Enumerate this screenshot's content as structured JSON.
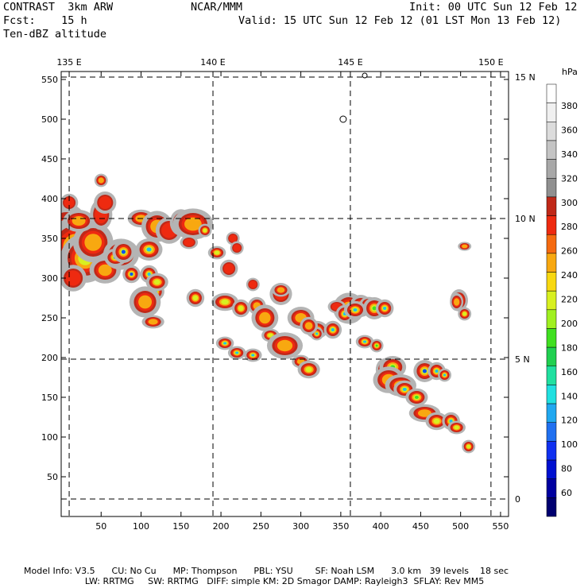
{
  "header": {
    "model": "CONTRAST  3km ARW",
    "center": "NCAR/MMM",
    "init": "Init: 00 UTC Sun 12 Feb 12",
    "fcst": "Fcst:    15 h",
    "valid": "Valid: 15 UTC Sun 12 Feb 12 (01 LST Mon 13 Feb 12)",
    "field": "Ten-dBZ altitude"
  },
  "footer": {
    "line1": "Model Info: V3.5      CU: No Cu      MP: Thompson      PBL: YSU        SF: Noah LSM      3.0 km   39 levels    18 sec",
    "line2": "                      LW: RRTMG     SW: RRTMG   DIFF: simple KM: 2D Smagor DAMP: Rayleigh3  SFLAY: Rev MM5"
  },
  "colors": {
    "grid": "#000000",
    "coast": "#000000"
  },
  "chart_data": {
    "type": "heatmap",
    "title": "Ten-dBZ altitude",
    "x": {
      "ticks": [
        50,
        100,
        150,
        200,
        250,
        300,
        350,
        400,
        450,
        500,
        550
      ],
      "range": [
        0,
        560
      ]
    },
    "y": {
      "ticks": [
        50,
        100,
        150,
        200,
        250,
        300,
        350,
        400,
        450,
        500,
        550
      ],
      "range": [
        0,
        560
      ]
    },
    "lon_labels": [
      {
        "label": "135 E",
        "x": 10
      },
      {
        "label": "140 E",
        "x": 190
      },
      {
        "label": "145 E",
        "x": 362
      },
      {
        "label": "150 E",
        "x": 538
      }
    ],
    "lat_labels": [
      {
        "label": "15 N",
        "y": 553
      },
      {
        "label": "10 N",
        "y": 375
      },
      {
        "label": "5 N",
        "y": 198
      },
      {
        "label": "0",
        "y": 22
      }
    ],
    "colorbar": {
      "unit": "hPa",
      "levels": [
        "380",
        "360",
        "340",
        "320",
        "300",
        "280",
        "260",
        "240",
        "220",
        "200",
        "180",
        "160",
        "140",
        "120",
        "100",
        "80",
        "60"
      ],
      "colors": [
        "#ffffff",
        "#f0f0f0",
        "#dcdcdc",
        "#c4c4c4",
        "#a8a8a8",
        "#909090",
        "#c02818",
        "#ee2a10",
        "#f56a10",
        "#f8a810",
        "#f8d810",
        "#d8f020",
        "#a0f020",
        "#40e020",
        "#20d050",
        "#20e0a0",
        "#20e0e0",
        "#20a8f0",
        "#2070f0",
        "#1030f0",
        "#0010d0",
        "#0000a0",
        "#000070"
      ]
    },
    "blobs": [
      [
        6,
        355,
        22,
        28,
        4
      ],
      [
        18,
        340,
        26,
        26,
        4
      ],
      [
        30,
        325,
        22,
        22,
        4
      ],
      [
        40,
        345,
        18,
        18,
        3
      ],
      [
        55,
        310,
        14,
        12,
        3
      ],
      [
        22,
        372,
        14,
        10,
        3
      ],
      [
        50,
        380,
        10,
        14,
        2
      ],
      [
        55,
        395,
        10,
        10,
        2
      ],
      [
        50,
        423,
        6,
        6,
        3
      ],
      [
        10,
        395,
        8,
        8,
        2
      ],
      [
        15,
        300,
        12,
        12,
        2
      ],
      [
        75,
        330,
        16,
        14,
        2
      ],
      [
        68,
        326,
        10,
        8,
        7
      ],
      [
        78,
        333,
        10,
        10,
        7
      ],
      [
        110,
        336,
        12,
        10,
        6
      ],
      [
        88,
        305,
        8,
        8,
        7
      ],
      [
        110,
        305,
        8,
        8,
        6
      ],
      [
        118,
        283,
        8,
        8,
        6
      ],
      [
        105,
        270,
        14,
        14,
        3
      ],
      [
        120,
        295,
        10,
        8,
        4
      ],
      [
        100,
        375,
        12,
        8,
        3
      ],
      [
        120,
        365,
        14,
        14,
        3
      ],
      [
        135,
        360,
        12,
        12,
        2
      ],
      [
        150,
        370,
        10,
        12,
        3
      ],
      [
        165,
        368,
        18,
        14,
        3
      ],
      [
        160,
        345,
        8,
        6,
        2
      ],
      [
        168,
        275,
        8,
        8,
        4
      ],
      [
        180,
        360,
        6,
        6,
        4
      ],
      [
        115,
        245,
        10,
        6,
        3
      ],
      [
        215,
        350,
        6,
        6,
        2
      ],
      [
        220,
        338,
        6,
        6,
        2
      ],
      [
        195,
        332,
        8,
        6,
        4
      ],
      [
        210,
        312,
        8,
        8,
        2
      ],
      [
        240,
        292,
        6,
        6,
        2
      ],
      [
        205,
        270,
        12,
        8,
        4
      ],
      [
        225,
        262,
        8,
        8,
        4
      ],
      [
        245,
        265,
        8,
        8,
        3
      ],
      [
        255,
        250,
        12,
        12,
        3
      ],
      [
        262,
        228,
        8,
        6,
        4
      ],
      [
        205,
        218,
        8,
        6,
        6
      ],
      [
        220,
        206,
        8,
        6,
        6
      ],
      [
        240,
        203,
        8,
        6,
        6
      ],
      [
        280,
        215,
        16,
        12,
        3
      ],
      [
        300,
        250,
        12,
        10,
        3
      ],
      [
        320,
        235,
        10,
        8,
        3
      ],
      [
        340,
        235,
        8,
        8,
        6
      ],
      [
        300,
        195,
        8,
        6,
        3
      ],
      [
        310,
        185,
        10,
        8,
        4
      ],
      [
        320,
        230,
        6,
        6,
        6
      ],
      [
        275,
        280,
        10,
        10,
        2
      ],
      [
        275,
        285,
        8,
        6,
        3
      ],
      [
        310,
        240,
        8,
        8,
        3
      ],
      [
        360,
        262,
        14,
        14,
        3
      ],
      [
        375,
        265,
        10,
        10,
        4
      ],
      [
        385,
        268,
        8,
        6,
        3
      ],
      [
        345,
        264,
        8,
        6,
        2
      ],
      [
        355,
        255,
        8,
        8,
        6
      ],
      [
        368,
        260,
        10,
        8,
        6
      ],
      [
        392,
        262,
        10,
        10,
        5
      ],
      [
        405,
        262,
        8,
        8,
        6
      ],
      [
        405,
        185,
        8,
        10,
        4
      ],
      [
        415,
        188,
        12,
        10,
        5
      ],
      [
        410,
        172,
        14,
        12,
        3
      ],
      [
        425,
        165,
        14,
        10,
        3
      ],
      [
        430,
        160,
        10,
        8,
        6
      ],
      [
        445,
        150,
        10,
        8,
        5
      ],
      [
        455,
        183,
        10,
        10,
        7
      ],
      [
        470,
        183,
        8,
        8,
        6
      ],
      [
        480,
        178,
        6,
        6,
        6
      ],
      [
        498,
        272,
        8,
        10,
        3
      ],
      [
        505,
        255,
        6,
        6,
        4
      ],
      [
        455,
        130,
        14,
        8,
        3
      ],
      [
        470,
        120,
        10,
        8,
        4
      ],
      [
        488,
        120,
        8,
        8,
        6
      ],
      [
        495,
        112,
        8,
        6,
        4
      ],
      [
        510,
        88,
        6,
        6,
        4
      ],
      [
        380,
        220,
        8,
        6,
        6
      ],
      [
        395,
        215,
        6,
        6,
        5
      ],
      [
        505,
        340,
        6,
        4,
        3
      ],
      [
        495,
        270,
        6,
        8,
        3
      ]
    ],
    "islands": [
      [
        353,
        500,
        4
      ],
      [
        380,
        555,
        3
      ]
    ]
  }
}
